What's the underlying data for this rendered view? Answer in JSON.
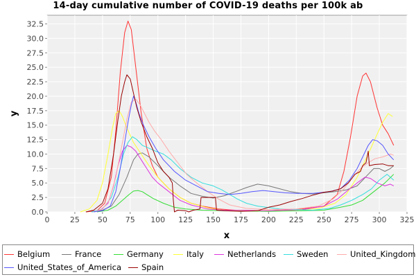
{
  "chart_data": {
    "type": "line",
    "title": "14-day cumulative number of COVID-19 deaths per 100k ab",
    "xlabel": "x",
    "ylabel": "y",
    "xlim": [
      0,
      325
    ],
    "ylim": [
      0,
      34
    ],
    "xticks": [
      0,
      25,
      50,
      75,
      100,
      125,
      150,
      175,
      200,
      225,
      250,
      275,
      300,
      325
    ],
    "yticks": [
      0.0,
      2.5,
      5.0,
      7.5,
      10.0,
      12.5,
      15.0,
      17.5,
      20.0,
      22.5,
      25.0,
      27.5,
      30.0,
      32.5
    ],
    "ytick_labels": [
      "0.0",
      "2.5",
      "5.0",
      "7.5",
      "10.0",
      "12.5",
      "15.0",
      "17.5",
      "20.0",
      "22.5",
      "25.0",
      "27.5",
      "30.0",
      "32.5"
    ],
    "grid": true,
    "legend_position": "bottom",
    "series": [
      {
        "name": "Belgium",
        "color": "#ff3333",
        "points": [
          [
            35,
            0
          ],
          [
            45,
            0.2
          ],
          [
            52,
            1.5
          ],
          [
            58,
            6
          ],
          [
            62,
            14
          ],
          [
            66,
            24
          ],
          [
            70,
            31
          ],
          [
            73,
            33
          ],
          [
            76,
            31.5
          ],
          [
            80,
            25
          ],
          [
            85,
            17
          ],
          [
            90,
            11
          ],
          [
            95,
            8
          ],
          [
            100,
            6
          ],
          [
            110,
            4
          ],
          [
            120,
            2.5
          ],
          [
            130,
            1.5
          ],
          [
            140,
            1
          ],
          [
            155,
            0.5
          ],
          [
            170,
            0.3
          ],
          [
            200,
            0.2
          ],
          [
            230,
            0.5
          ],
          [
            250,
            1
          ],
          [
            262,
            3
          ],
          [
            268,
            7
          ],
          [
            274,
            13
          ],
          [
            280,
            20
          ],
          [
            285,
            23.5
          ],
          [
            288,
            24
          ],
          [
            292,
            22.5
          ],
          [
            298,
            18
          ],
          [
            303,
            15
          ],
          [
            308,
            13.5
          ],
          [
            313,
            11.5
          ]
        ]
      },
      {
        "name": "France",
        "color": "#777777",
        "points": [
          [
            40,
            0
          ],
          [
            50,
            0.3
          ],
          [
            58,
            1
          ],
          [
            65,
            3
          ],
          [
            72,
            6
          ],
          [
            78,
            9
          ],
          [
            82,
            10
          ],
          [
            86,
            10.2
          ],
          [
            92,
            9.5
          ],
          [
            100,
            8
          ],
          [
            110,
            6
          ],
          [
            120,
            4.5
          ],
          [
            130,
            3.2
          ],
          [
            140,
            2.7
          ],
          [
            150,
            2.4
          ],
          [
            160,
            2.8
          ],
          [
            170,
            3.5
          ],
          [
            180,
            4.2
          ],
          [
            190,
            4.8
          ],
          [
            200,
            4.5
          ],
          [
            210,
            4
          ],
          [
            220,
            3.5
          ],
          [
            230,
            3.2
          ],
          [
            240,
            3.1
          ],
          [
            250,
            3.3
          ],
          [
            260,
            3.5
          ],
          [
            270,
            3.8
          ],
          [
            280,
            4.5
          ],
          [
            285,
            5.5
          ],
          [
            290,
            6.5
          ],
          [
            295,
            7.5
          ],
          [
            300,
            7.5
          ],
          [
            305,
            7
          ],
          [
            310,
            7.5
          ],
          [
            313,
            8
          ]
        ]
      },
      {
        "name": "Germany",
        "color": "#33dd33",
        "points": [
          [
            45,
            0
          ],
          [
            55,
            0.3
          ],
          [
            62,
            1
          ],
          [
            68,
            2
          ],
          [
            74,
            3
          ],
          [
            78,
            3.6
          ],
          [
            82,
            3.7
          ],
          [
            86,
            3.5
          ],
          [
            90,
            3
          ],
          [
            96,
            2.3
          ],
          [
            105,
            1.5
          ],
          [
            115,
            0.8
          ],
          [
            125,
            0.5
          ],
          [
            140,
            0.3
          ],
          [
            160,
            0.2
          ],
          [
            200,
            0.1
          ],
          [
            230,
            0.2
          ],
          [
            250,
            0.3
          ],
          [
            265,
            0.8
          ],
          [
            275,
            1.2
          ],
          [
            285,
            2
          ],
          [
            295,
            3.5
          ],
          [
            305,
            5
          ],
          [
            313,
            6.5
          ]
        ]
      },
      {
        "name": "Italy",
        "color": "#ffff33",
        "points": [
          [
            30,
            0
          ],
          [
            38,
            0.5
          ],
          [
            45,
            2
          ],
          [
            50,
            5
          ],
          [
            55,
            10
          ],
          [
            59,
            14.5
          ],
          [
            62,
            17
          ],
          [
            65,
            17.5
          ],
          [
            68,
            16.5
          ],
          [
            72,
            14.5
          ],
          [
            78,
            12
          ],
          [
            85,
            10
          ],
          [
            92,
            8
          ],
          [
            100,
            6
          ],
          [
            110,
            4
          ],
          [
            120,
            2.5
          ],
          [
            130,
            1.5
          ],
          [
            145,
            0.7
          ],
          [
            160,
            0.3
          ],
          [
            190,
            0.2
          ],
          [
            220,
            0.3
          ],
          [
            245,
            0.6
          ],
          [
            260,
            1.5
          ],
          [
            270,
            3
          ],
          [
            280,
            6
          ],
          [
            290,
            10
          ],
          [
            297,
            13
          ],
          [
            303,
            15.5
          ],
          [
            308,
            17
          ],
          [
            312,
            16.5
          ]
        ]
      },
      {
        "name": "Netherlands",
        "color": "#dd33dd",
        "points": [
          [
            40,
            0
          ],
          [
            48,
            0.3
          ],
          [
            55,
            1.5
          ],
          [
            60,
            4.5
          ],
          [
            64,
            8
          ],
          [
            68,
            10.5
          ],
          [
            72,
            11.5
          ],
          [
            76,
            11.2
          ],
          [
            80,
            10.5
          ],
          [
            85,
            9
          ],
          [
            90,
            7.5
          ],
          [
            95,
            6
          ],
          [
            100,
            5
          ],
          [
            110,
            3.5
          ],
          [
            120,
            2
          ],
          [
            130,
            1.2
          ],
          [
            145,
            0.5
          ],
          [
            160,
            0.3
          ],
          [
            200,
            0.2
          ],
          [
            230,
            0.4
          ],
          [
            250,
            1
          ],
          [
            262,
            2.2
          ],
          [
            272,
            3.8
          ],
          [
            280,
            5
          ],
          [
            287,
            6
          ],
          [
            292,
            5.8
          ],
          [
            298,
            5
          ],
          [
            305,
            4.5
          ],
          [
            310,
            4.8
          ],
          [
            313,
            4.5
          ]
        ]
      },
      {
        "name": "Sweden",
        "color": "#33dddd",
        "points": [
          [
            40,
            0
          ],
          [
            50,
            0.5
          ],
          [
            58,
            2.5
          ],
          [
            64,
            6
          ],
          [
            69,
            10
          ],
          [
            73,
            12
          ],
          [
            77,
            13
          ],
          [
            81,
            12.5
          ],
          [
            86,
            11.5
          ],
          [
            92,
            11
          ],
          [
            98,
            10.5
          ],
          [
            105,
            10
          ],
          [
            112,
            9
          ],
          [
            120,
            7.5
          ],
          [
            130,
            6
          ],
          [
            140,
            5
          ],
          [
            150,
            4.5
          ],
          [
            158,
            3.8
          ],
          [
            165,
            3
          ],
          [
            172,
            2.2
          ],
          [
            180,
            1.5
          ],
          [
            190,
            1
          ],
          [
            210,
            0.5
          ],
          [
            240,
            0.3
          ],
          [
            255,
            0.6
          ],
          [
            265,
            1.2
          ],
          [
            275,
            2
          ],
          [
            285,
            3
          ],
          [
            293,
            4
          ],
          [
            300,
            5.5
          ],
          [
            307,
            6.5
          ],
          [
            313,
            5.5
          ]
        ]
      },
      {
        "name": "United_Kingdom",
        "color": "#ffaaaa",
        "points": [
          [
            42,
            0
          ],
          [
            50,
            0.5
          ],
          [
            56,
            2
          ],
          [
            62,
            6
          ],
          [
            67,
            11
          ],
          [
            72,
            16
          ],
          [
            76,
            19
          ],
          [
            80,
            19.5
          ],
          [
            84,
            18.5
          ],
          [
            88,
            17
          ],
          [
            92,
            15.5
          ],
          [
            97,
            14
          ],
          [
            103,
            12.5
          ],
          [
            110,
            10.5
          ],
          [
            118,
            8.5
          ],
          [
            126,
            6.5
          ],
          [
            135,
            5
          ],
          [
            145,
            3.5
          ],
          [
            155,
            2.2
          ],
          [
            165,
            1.2
          ],
          [
            180,
            0.6
          ],
          [
            200,
            0.4
          ],
          [
            225,
            0.5
          ],
          [
            245,
            1
          ],
          [
            258,
            2.2
          ],
          [
            268,
            4
          ],
          [
            276,
            6
          ],
          [
            283,
            7.5
          ],
          [
            290,
            8.5
          ],
          [
            296,
            9.2
          ],
          [
            303,
            9.5
          ],
          [
            310,
            10
          ],
          [
            313,
            9.8
          ]
        ]
      },
      {
        "name": "United_States_of_America",
        "color": "#5555ff",
        "points": [
          [
            42,
            0
          ],
          [
            50,
            0.2
          ],
          [
            57,
            1
          ],
          [
            62,
            3.5
          ],
          [
            66,
            7.5
          ],
          [
            70,
            12
          ],
          [
            73,
            15.5
          ],
          [
            76,
            18.5
          ],
          [
            78,
            20
          ],
          [
            80,
            19
          ],
          [
            83,
            17
          ],
          [
            87,
            15
          ],
          [
            92,
            13
          ],
          [
            98,
            11
          ],
          [
            105,
            9
          ],
          [
            115,
            7
          ],
          [
            125,
            5.5
          ],
          [
            135,
            4.5
          ],
          [
            145,
            3.5
          ],
          [
            155,
            3.2
          ],
          [
            165,
            3
          ],
          [
            175,
            3.2
          ],
          [
            185,
            3.5
          ],
          [
            195,
            3.7
          ],
          [
            205,
            3.5
          ],
          [
            215,
            3.3
          ],
          [
            225,
            3.2
          ],
          [
            240,
            3.2
          ],
          [
            255,
            3.5
          ],
          [
            265,
            4
          ],
          [
            273,
            5.5
          ],
          [
            280,
            7.5
          ],
          [
            285,
            9.5
          ],
          [
            290,
            11.5
          ],
          [
            294,
            12.5
          ],
          [
            298,
            12.3
          ],
          [
            303,
            11.5
          ],
          [
            308,
            10
          ],
          [
            313,
            9
          ]
        ]
      },
      {
        "name": "Spain",
        "color": "#990000",
        "points": [
          [
            35,
            0
          ],
          [
            42,
            0.3
          ],
          [
            50,
            1.5
          ],
          [
            55,
            4
          ],
          [
            60,
            10
          ],
          [
            64,
            16
          ],
          [
            67,
            20
          ],
          [
            70,
            22.5
          ],
          [
            72,
            23.7
          ],
          [
            75,
            23
          ],
          [
            78,
            20.5
          ],
          [
            81,
            18
          ],
          [
            85,
            15.5
          ],
          [
            90,
            13
          ],
          [
            95,
            11
          ],
          [
            100,
            8.5
          ],
          [
            105,
            7
          ],
          [
            110,
            6
          ],
          [
            113,
            5
          ],
          [
            114,
            2
          ],
          [
            115,
            0
          ],
          [
            118,
            0.3
          ],
          [
            125,
            0.2
          ],
          [
            128,
            0
          ],
          [
            132,
            0.3
          ],
          [
            138,
            0.5
          ],
          [
            139,
            2.5
          ],
          [
            152,
            2.5
          ],
          [
            153,
            0.3
          ],
          [
            160,
            0.2
          ],
          [
            175,
            0.1
          ],
          [
            190,
            0.2
          ],
          [
            200,
            0.8
          ],
          [
            210,
            1.2
          ],
          [
            220,
            1.8
          ],
          [
            230,
            2.3
          ],
          [
            240,
            2.9
          ],
          [
            250,
            3.4
          ],
          [
            258,
            3.6
          ],
          [
            265,
            4
          ],
          [
            272,
            5
          ],
          [
            278,
            6.5
          ],
          [
            283,
            7
          ],
          [
            285,
            8
          ],
          [
            288,
            8.5
          ],
          [
            290,
            10.5
          ],
          [
            291,
            8
          ],
          [
            296,
            8.2
          ],
          [
            303,
            8.3
          ],
          [
            308,
            8
          ],
          [
            313,
            8
          ]
        ]
      }
    ],
    "legend_rows": [
      [
        "Belgium",
        "France",
        "Germany",
        "Italy",
        "Netherlands",
        "Sweden",
        "United_Kingdom"
      ],
      [
        "United_States_of_America",
        "Spain"
      ]
    ]
  }
}
